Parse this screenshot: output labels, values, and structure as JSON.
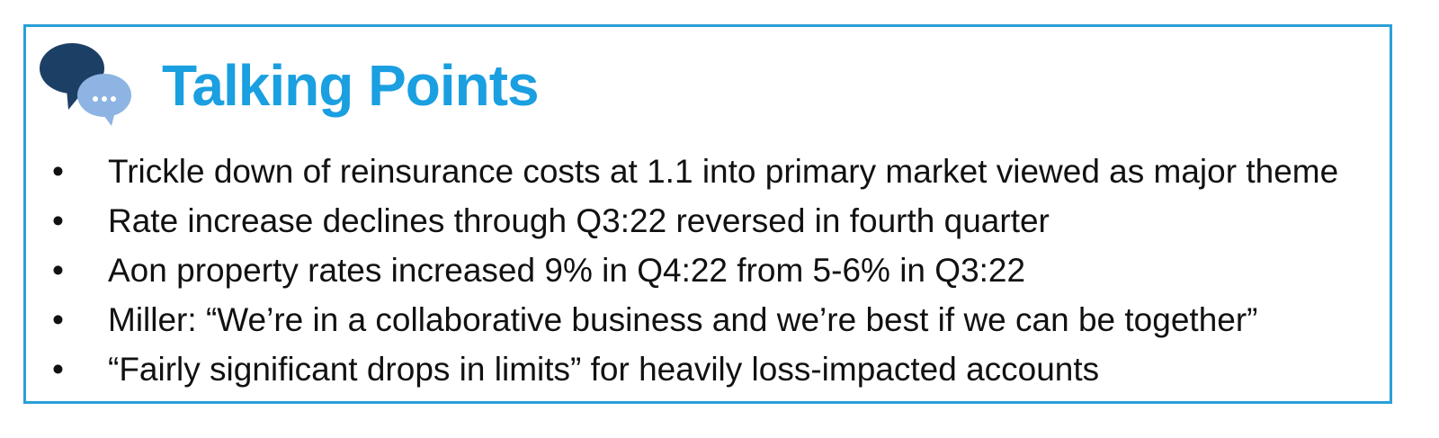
{
  "header": {
    "title": "Talking Points"
  },
  "bullets": [
    "Trickle down of reinsurance costs at 1.1 into primary market viewed as major theme",
    "Rate increase declines through Q3:22 reversed in fourth quarter",
    "Aon property rates increased 9% in Q4:22 from 5-6% in Q3:22",
    "Miller: “We’re in a collaborative business and we’re best if we can be together”",
    "“Fairly significant drops in limits” for heavily loss-impacted accounts"
  ]
}
